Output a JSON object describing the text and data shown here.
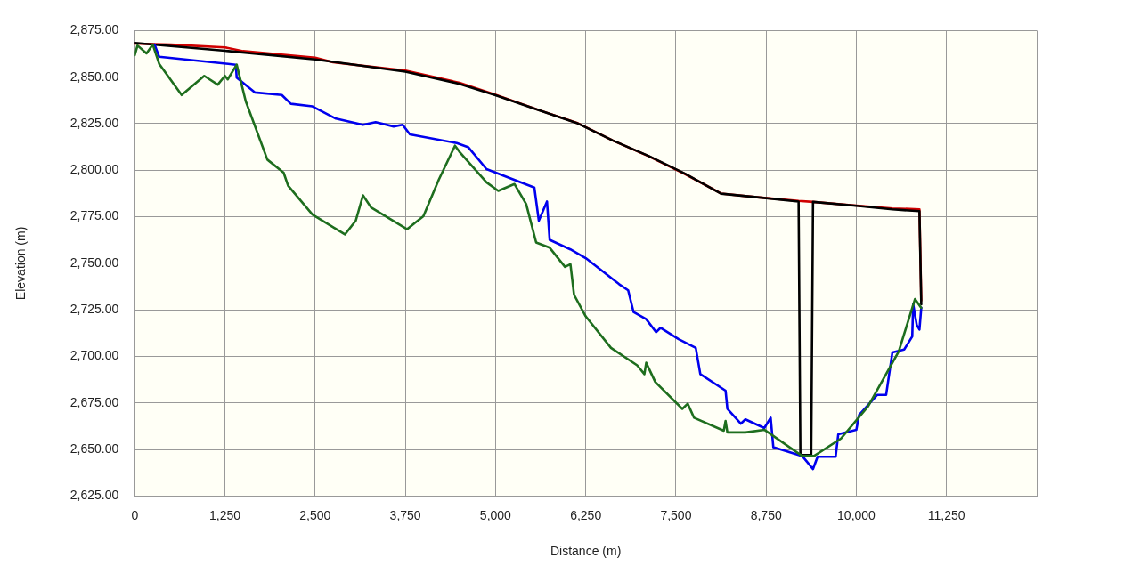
{
  "chart_data": {
    "type": "line",
    "xlabel": "Distance (m)",
    "ylabel": "Elevation (m)",
    "xlim": [
      0,
      12500
    ],
    "ylim": [
      2625,
      2875
    ],
    "xticks": [
      {
        "value": 0,
        "label": "0"
      },
      {
        "value": 1250,
        "label": "1,250"
      },
      {
        "value": 2500,
        "label": "2,500"
      },
      {
        "value": 3750,
        "label": "3,750"
      },
      {
        "value": 5000,
        "label": "5,000"
      },
      {
        "value": 6250,
        "label": "6,250"
      },
      {
        "value": 7500,
        "label": "7,500"
      },
      {
        "value": 8750,
        "label": "8,750"
      },
      {
        "value": 10000,
        "label": "10,000"
      },
      {
        "value": 11250,
        "label": "11,250"
      },
      {
        "value": 12500,
        "label": null
      }
    ],
    "yticks": [
      {
        "value": 2625,
        "label": "2,625.00"
      },
      {
        "value": 2650,
        "label": "2,650.00"
      },
      {
        "value": 2675,
        "label": "2,675.00"
      },
      {
        "value": 2700,
        "label": "2,700.00"
      },
      {
        "value": 2725,
        "label": "2,725.00"
      },
      {
        "value": 2750,
        "label": "2,750.00"
      },
      {
        "value": 2775,
        "label": "2,775.00"
      },
      {
        "value": 2800,
        "label": "2,800.00"
      },
      {
        "value": 2825,
        "label": "2,825.00"
      },
      {
        "value": 2850,
        "label": "2,850.00"
      },
      {
        "value": 2875,
        "label": "2,875.00"
      }
    ],
    "grid": true,
    "legend": false,
    "marker": "none",
    "line_style": "solid",
    "series": [
      {
        "color": "#d00000",
        "x": [
          0,
          500,
          1250,
          1500,
          2500,
          2750,
          3750,
          4500,
          5000,
          5625,
          6125,
          6625,
          7125,
          7625,
          8125,
          8625,
          9200,
          9400,
          10000,
          10500,
          10875,
          10900
        ],
        "values": [
          2868,
          2867.5,
          2866,
          2864,
          2860.5,
          2858,
          2853.5,
          2847,
          2840.5,
          2832,
          2825.5,
          2816,
          2807.5,
          2798,
          2787.5,
          2785.5,
          2783.5,
          2783,
          2781,
          2779.5,
          2779,
          2730
        ]
      },
      {
        "color": "#000000",
        "x": [
          0,
          1250,
          2500,
          3750,
          4500,
          5000,
          5625,
          6125,
          6625,
          7125,
          7625,
          8125,
          8625,
          9200,
          9225,
          9375,
          9400,
          10000,
          10500,
          10875,
          10900
        ],
        "values": [
          2868.4,
          2864.2,
          2859.5,
          2853,
          2846.4,
          2840.3,
          2831.9,
          2825.4,
          2816,
          2807.6,
          2798.2,
          2787.4,
          2785.5,
          2783.2,
          2647,
          2647,
          2783,
          2780.9,
          2779,
          2778,
          2728
        ]
      },
      {
        "color": "#0000ee",
        "x": [
          275,
          338,
          1400,
          1413,
          1663,
          2038,
          2163,
          2463,
          2788,
          3163,
          3338,
          3588,
          3713,
          3813,
          4463,
          4625,
          4875,
          5538,
          5600,
          5713,
          5750,
          6038,
          6250,
          6713,
          6838,
          6913,
          7088,
          7225,
          7288,
          7538,
          7775,
          7838,
          8188,
          8213,
          8400,
          8463,
          8725,
          8813,
          8850,
          9250,
          9400,
          9463,
          9713,
          9750,
          10000,
          10038,
          10288,
          10413,
          10500,
          10663,
          10775,
          10788,
          10838,
          10875,
          10900
        ],
        "values": [
          2867.5,
          2861,
          2856.7,
          2849.7,
          2841.8,
          2840.4,
          2835.7,
          2834.3,
          2827.7,
          2824.4,
          2825.8,
          2823.5,
          2824.4,
          2819.3,
          2814.6,
          2812.3,
          2800.6,
          2790.7,
          2772.9,
          2783.2,
          2762.6,
          2757.5,
          2752.8,
          2738.8,
          2735.5,
          2723.8,
          2720,
          2713,
          2715.4,
          2709.3,
          2704.6,
          2690.5,
          2681.6,
          2671.8,
          2663.9,
          2666.2,
          2661.5,
          2667.1,
          2651.2,
          2646.5,
          2639.5,
          2646.1,
          2646.1,
          2658.2,
          2660.6,
          2668.5,
          2679.3,
          2679.3,
          2702.2,
          2703.7,
          2710.7,
          2728,
          2716.8,
          2714.4,
          2726.1
        ]
      },
      {
        "color": "#1e6e1e",
        "x": [
          0,
          38,
          163,
          250,
          338,
          650,
          963,
          1150,
          1250,
          1288,
          1413,
          1538,
          1838,
          2063,
          2125,
          2463,
          2913,
          3063,
          3163,
          3275,
          3775,
          3875,
          4000,
          4213,
          4438,
          4500,
          4875,
          5038,
          5263,
          5425,
          5563,
          5750,
          5963,
          6038,
          6088,
          6250,
          6600,
          6963,
          7063,
          7088,
          7213,
          7588,
          7663,
          7750,
          8163,
          8188,
          8213,
          8463,
          8725,
          9250,
          9413,
          9788,
          10163,
          10588,
          10813,
          10900
        ],
        "values": [
          2861.9,
          2867,
          2862.8,
          2867.5,
          2857.2,
          2840.4,
          2850.7,
          2846,
          2850.7,
          2848.8,
          2856.7,
          2837.1,
          2805.7,
          2798.7,
          2791.7,
          2776.2,
          2765.5,
          2772.9,
          2786.5,
          2780,
          2768.3,
          2771.5,
          2775.3,
          2794.9,
          2813.2,
          2809.9,
          2793.5,
          2788.9,
          2792.6,
          2781.8,
          2761.2,
          2758.4,
          2748.1,
          2749.5,
          2733.1,
          2721.5,
          2704.6,
          2695.2,
          2690.5,
          2696.6,
          2686.3,
          2671.8,
          2674.6,
          2667.1,
          2660.1,
          2665.3,
          2659.2,
          2659.2,
          2660.6,
          2646.5,
          2646.5,
          2655.9,
          2673.2,
          2702.7,
          2730.8,
          2726.1
        ]
      }
    ]
  }
}
